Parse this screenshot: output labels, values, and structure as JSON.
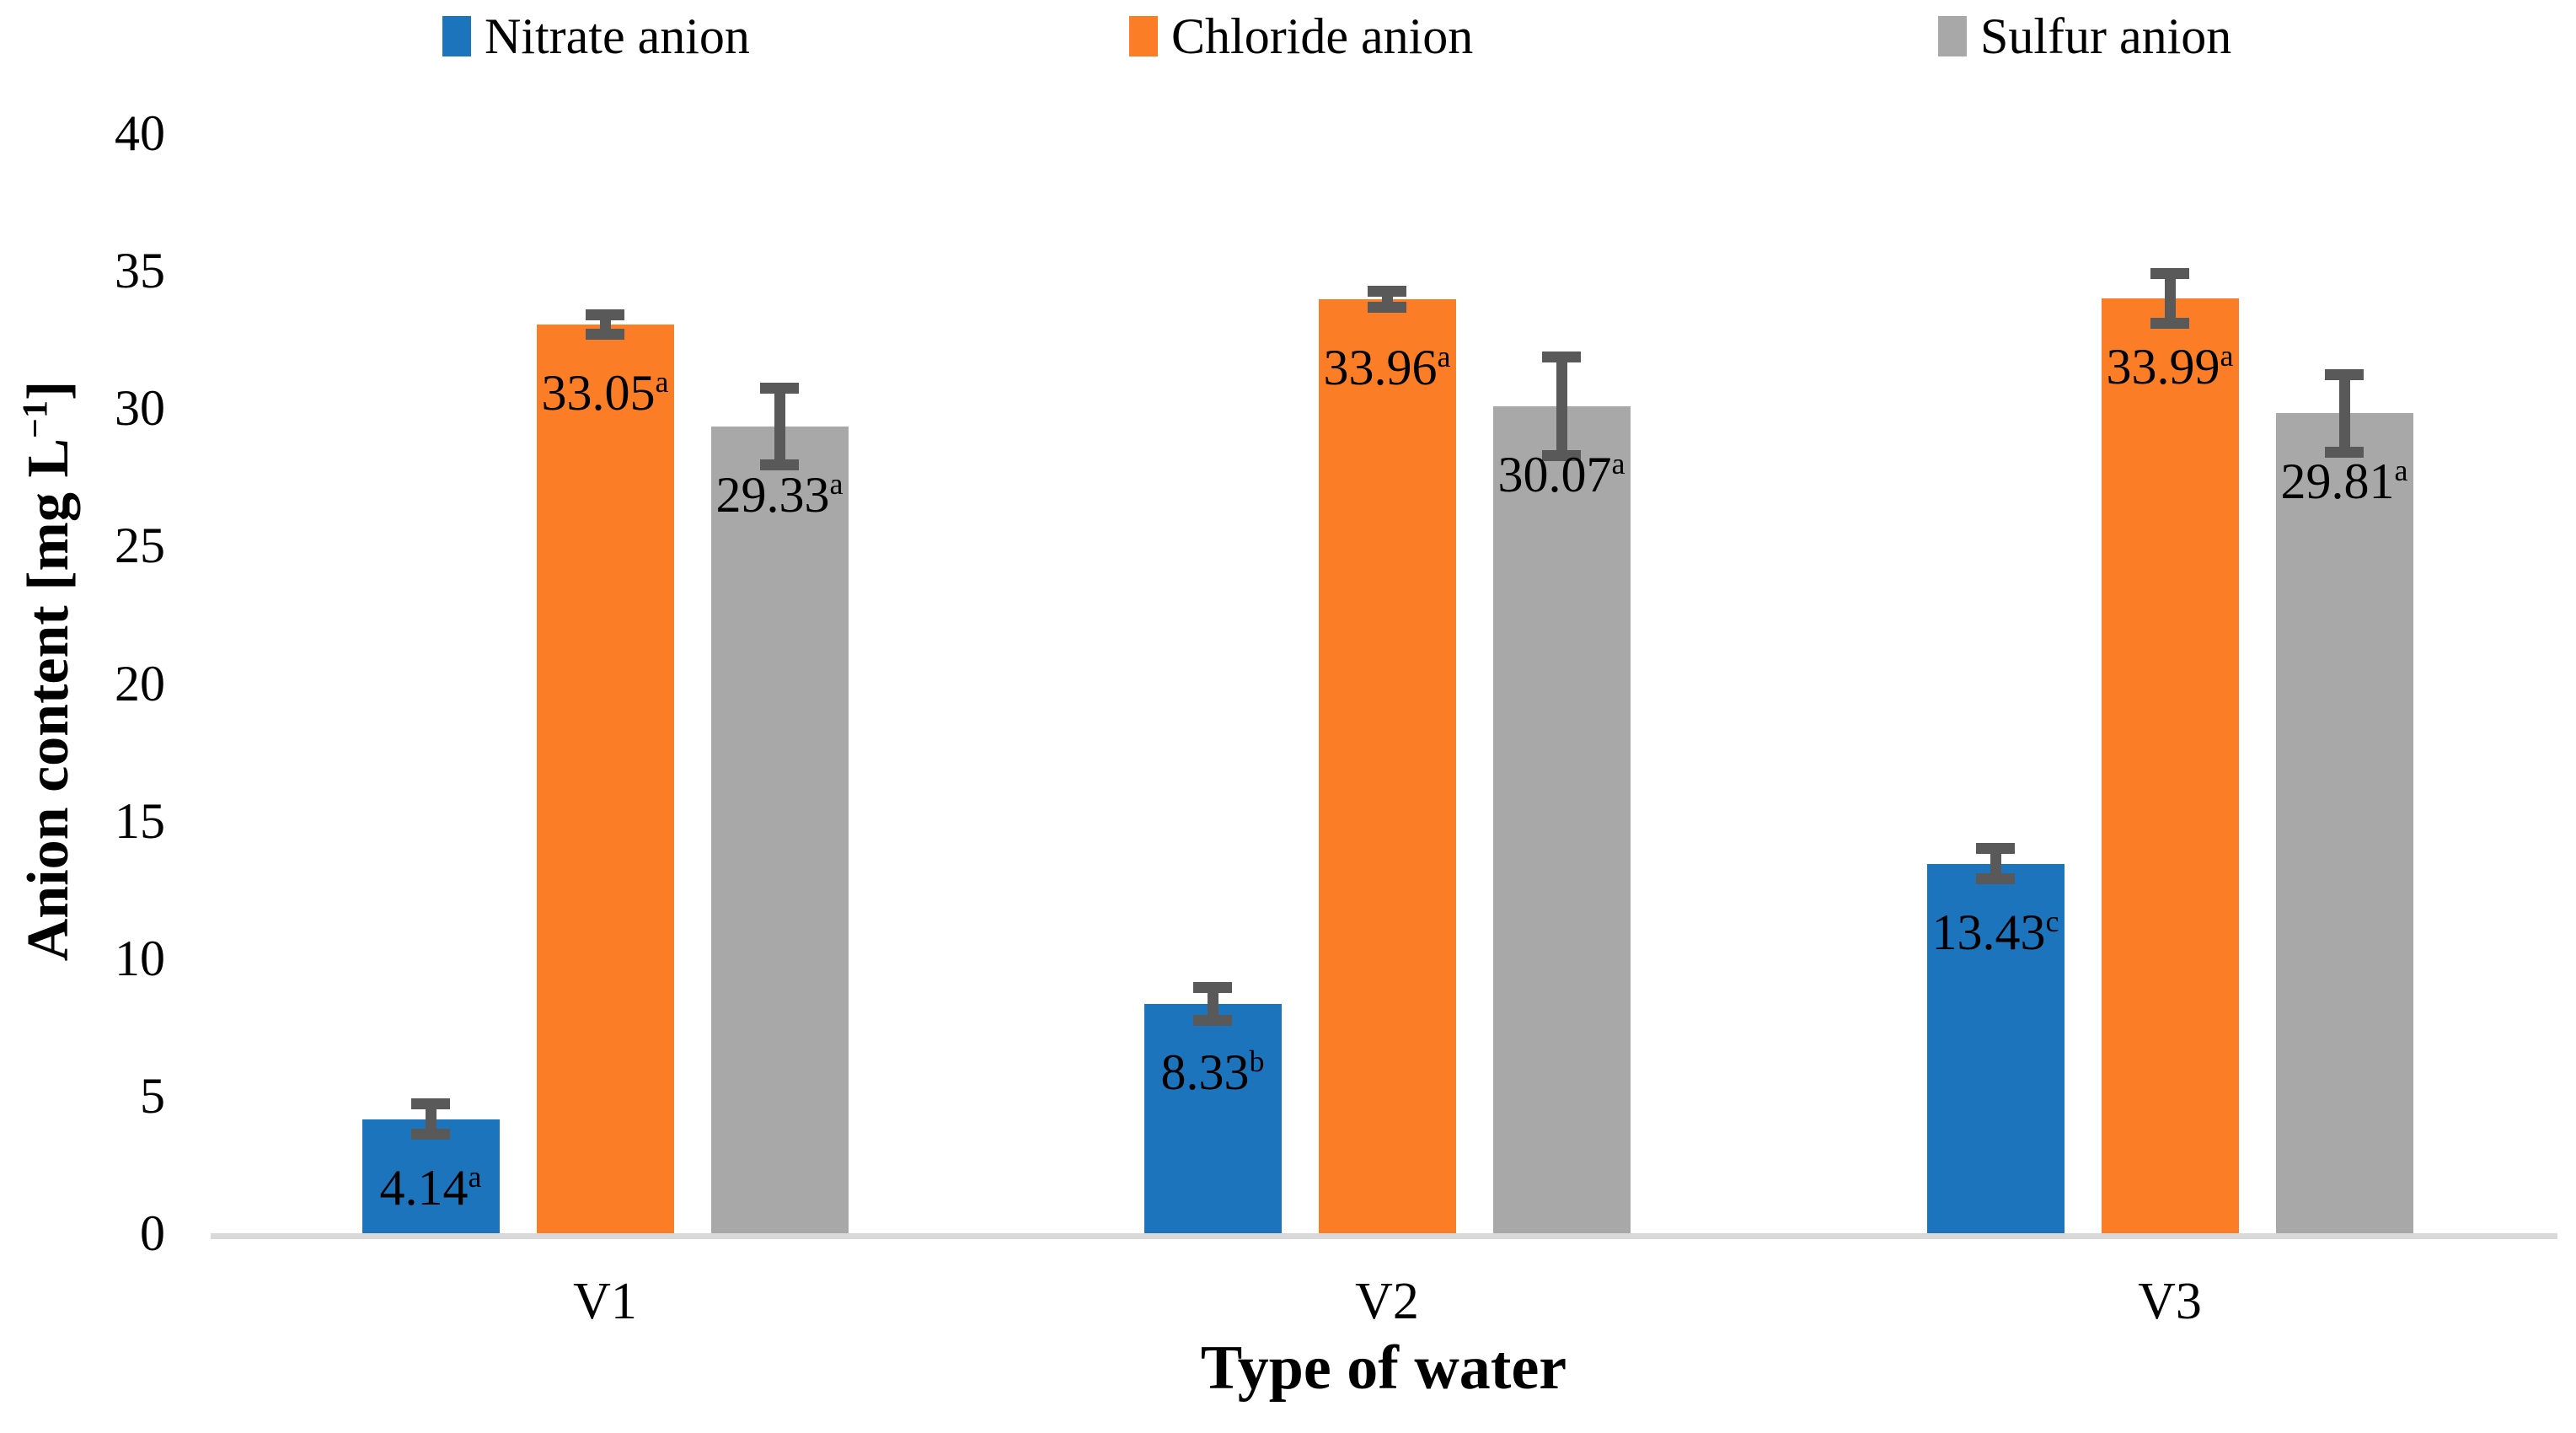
{
  "chart_data": {
    "type": "bar",
    "title": "",
    "xlabel": "Type of water",
    "ylabel": "Anion content [mg L-1]",
    "ylabel_parts": {
      "prefix": "Anion content [mg L",
      "sup": "−1",
      "suffix": "]"
    },
    "categories": [
      "V1",
      "V2",
      "V3"
    ],
    "y_axis": {
      "min": 0,
      "max": 40,
      "step": 5,
      "ticks": [
        0,
        5,
        10,
        15,
        20,
        25,
        30,
        35,
        40
      ]
    },
    "grid": false,
    "legend_position": "top",
    "background_color": "#ffffff",
    "axis_line_color": "#d9d9d9",
    "error_bar_color": "#595959",
    "series": [
      {
        "name": "Nitrate anion",
        "color": "#1c75bc",
        "values": [
          4.14,
          8.33,
          13.43
        ],
        "errors": [
          0.75,
          0.8,
          0.75
        ],
        "labels": [
          "4.14",
          "8.33",
          "13.43"
        ],
        "sig_letters": [
          "a",
          "b",
          "c"
        ]
      },
      {
        "name": "Chloride anion",
        "color": "#fb7d25",
        "values": [
          33.05,
          33.96,
          33.99
        ],
        "errors": [
          0.55,
          0.5,
          1.1
        ],
        "labels": [
          "33.05",
          "33.96",
          "33.99"
        ],
        "sig_letters": [
          "a",
          "a",
          "a"
        ]
      },
      {
        "name": "Sulfur anion",
        "color": "#a8a8a8",
        "values": [
          29.33,
          30.07,
          29.81
        ],
        "errors": [
          1.6,
          2.0,
          1.6
        ],
        "labels": [
          "29.33",
          "30.07",
          "29.81"
        ],
        "sig_letters": [
          "a",
          "a",
          "a"
        ]
      }
    ]
  }
}
